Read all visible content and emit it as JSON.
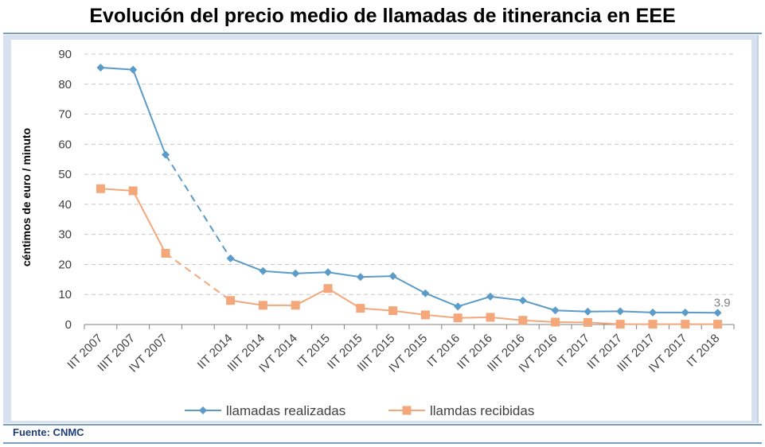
{
  "title": "Evolución del precio medio de llamadas de itinerancia en EEE",
  "source": "Fuente: CNMC",
  "colors": {
    "realizadas": "#5b9bc8",
    "recibidas": "#f4a77a",
    "grid": "#c8c8c8",
    "frame": "#d7e1ef",
    "rule": "#7a9cc6",
    "source_text": "#1f3f7a"
  },
  "chart_data": {
    "type": "line",
    "title": "Evolución del precio medio de llamadas de itinerancia en EEE",
    "ylabel": "céntimos de euro / minuto",
    "xlabel": "",
    "ylim": [
      0,
      90
    ],
    "yticks": [
      0,
      10,
      20,
      30,
      40,
      50,
      60,
      70,
      80,
      90
    ],
    "grid": "horizontal dashed",
    "legend_position": "bottom",
    "categories": [
      "IIT 2007",
      "IIIT 2007",
      "IVT 2007",
      "",
      "IIT 2014",
      "IIIT 2014",
      "IVT 2014",
      "IT 2015",
      "IIT 2015",
      "IIIT 2015",
      "IVT 2015",
      "IT 2016",
      "IIT 2016",
      "IIIT 2016",
      "IVT 2016",
      "IT 2017",
      "IIT 2017",
      "IIIT 2017",
      "IVT 2017",
      "IT 2018"
    ],
    "series": [
      {
        "name": "llamadas realizadas",
        "marker": "diamond",
        "values": [
          85.5,
          84.8,
          56.5,
          null,
          22,
          17.8,
          17,
          17.4,
          15.8,
          16.1,
          10.4,
          6,
          9.3,
          8,
          4.7,
          4.3,
          4.4,
          4,
          4,
          3.9
        ]
      },
      {
        "name": "llamdas recibidas",
        "marker": "square",
        "values": [
          45.2,
          44.5,
          23.7,
          null,
          8,
          6.4,
          6.4,
          12,
          5.4,
          4.6,
          3.2,
          2.2,
          2.4,
          1.4,
          0.8,
          0.7,
          0.1,
          0.1,
          0.1,
          0.1
        ]
      }
    ],
    "annotations": [
      {
        "text": "3.9",
        "series": 0,
        "index": 19
      }
    ]
  }
}
